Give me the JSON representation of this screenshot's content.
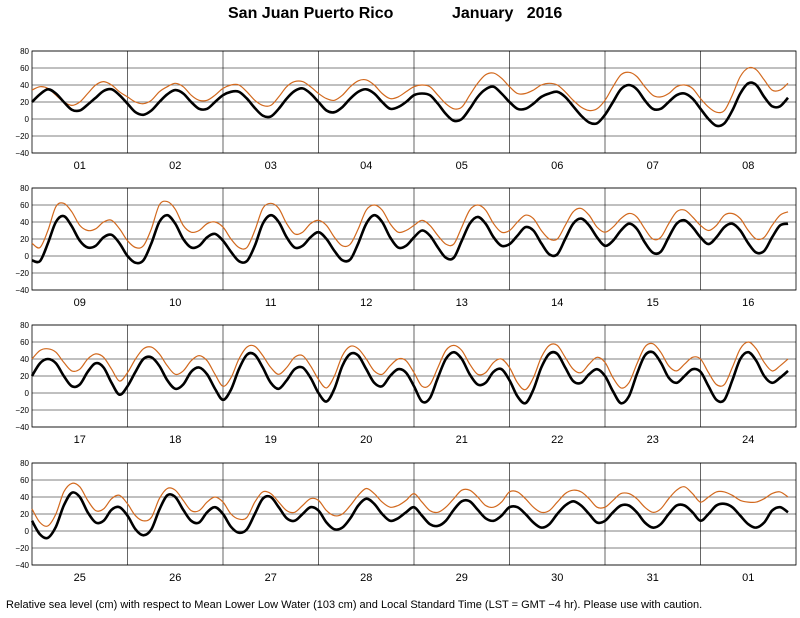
{
  "title": {
    "location": "San Juan Puerto Rico",
    "month": "January",
    "year": "2016"
  },
  "footnote": "Relative sea level (cm) with respect to Mean Lower Low Water (103 cm) and Local Standard Time (LST = GMT −4 hr). Please use with caution.",
  "colors": {
    "predicted": "#000000",
    "observed": "#d2691e",
    "grid": "#000000"
  },
  "chart_data": {
    "type": "line",
    "units": "cm",
    "ylim": [
      -40,
      80
    ],
    "yticks": [
      80,
      60,
      40,
      20,
      0,
      -20,
      -40
    ],
    "grid": true,
    "samples_per_day": 12,
    "series_order": [
      "predicted (black)",
      "observed (orange)"
    ],
    "panels": [
      {
        "day_labels": [
          "01",
          "02",
          "03",
          "04",
          "05",
          "06",
          "07",
          "08"
        ],
        "predicted": [
          [
            20,
            29,
            35,
            30,
            20,
            11,
            10,
            17,
            25,
            33,
            35,
            28
          ],
          [
            18,
            8,
            5,
            10,
            20,
            29,
            34,
            30,
            20,
            12,
            12,
            20
          ],
          [
            28,
            32,
            32,
            24,
            13,
            4,
            3,
            12,
            24,
            33,
            36,
            30
          ],
          [
            20,
            10,
            8,
            14,
            24,
            32,
            35,
            30,
            20,
            12,
            14,
            20
          ],
          [
            28,
            30,
            28,
            18,
            6,
            -2,
            0,
            12,
            26,
            35,
            38,
            30
          ],
          [
            20,
            12,
            12,
            18,
            26,
            30,
            32,
            26,
            15,
            4,
            -4,
            -5
          ],
          [
            5,
            20,
            35,
            40,
            35,
            22,
            12,
            12,
            20,
            28,
            30,
            24
          ],
          [
            12,
            0,
            -8,
            -5,
            10,
            30,
            42,
            40,
            26,
            15,
            15,
            25
          ]
        ],
        "observed": [
          [
            34,
            38,
            36,
            28,
            20,
            16,
            20,
            30,
            40,
            44,
            40,
            32
          ],
          [
            26,
            20,
            18,
            22,
            32,
            38,
            42,
            38,
            28,
            22,
            22,
            28
          ],
          [
            36,
            40,
            40,
            32,
            22,
            16,
            16,
            26,
            38,
            44,
            44,
            38
          ],
          [
            30,
            24,
            22,
            28,
            38,
            45,
            46,
            40,
            30,
            24,
            26,
            32
          ],
          [
            38,
            40,
            38,
            28,
            18,
            12,
            14,
            28,
            42,
            52,
            54,
            48
          ],
          [
            38,
            30,
            30,
            34,
            40,
            42,
            40,
            32,
            22,
            14,
            10,
            12
          ],
          [
            22,
            38,
            52,
            55,
            50,
            38,
            28,
            26,
            30,
            38,
            40,
            36
          ],
          [
            24,
            14,
            8,
            10,
            28,
            50,
            60,
            58,
            46,
            34,
            34,
            42
          ]
        ]
      },
      {
        "day_labels": [
          "09",
          "10",
          "11",
          "12",
          "13",
          "14",
          "15",
          "16"
        ],
        "predicted": [
          [
            -5,
            -6,
            15,
            40,
            47,
            35,
            18,
            10,
            12,
            22,
            25,
            15
          ],
          [
            0,
            -8,
            -5,
            15,
            40,
            48,
            38,
            20,
            10,
            12,
            22,
            26
          ],
          [
            18,
            5,
            -6,
            -6,
            12,
            38,
            48,
            40,
            22,
            10,
            12,
            22
          ],
          [
            28,
            20,
            6,
            -5,
            -4,
            15,
            38,
            48,
            40,
            22,
            10,
            12
          ],
          [
            22,
            30,
            24,
            10,
            -2,
            -2,
            18,
            38,
            46,
            38,
            22,
            12
          ],
          [
            14,
            24,
            34,
            30,
            15,
            2,
            2,
            20,
            38,
            44,
            36,
            22
          ],
          [
            12,
            18,
            30,
            38,
            32,
            16,
            4,
            5,
            22,
            38,
            42,
            34
          ],
          [
            22,
            14,
            22,
            34,
            38,
            30,
            15,
            4,
            6,
            22,
            36,
            38
          ]
        ],
        "observed": [
          [
            15,
            10,
            30,
            58,
            62,
            52,
            36,
            30,
            32,
            40,
            42,
            32
          ],
          [
            18,
            10,
            12,
            32,
            60,
            64,
            55,
            36,
            28,
            30,
            38,
            40
          ],
          [
            34,
            20,
            10,
            10,
            30,
            56,
            62,
            56,
            38,
            26,
            28,
            38
          ],
          [
            42,
            36,
            22,
            12,
            14,
            32,
            54,
            60,
            54,
            38,
            28,
            30
          ],
          [
            36,
            42,
            36,
            24,
            14,
            14,
            34,
            54,
            60,
            54,
            38,
            28
          ],
          [
            30,
            40,
            48,
            44,
            30,
            20,
            20,
            36,
            52,
            56,
            48,
            34
          ],
          [
            28,
            34,
            44,
            50,
            46,
            32,
            20,
            22,
            38,
            52,
            54,
            46
          ],
          [
            36,
            30,
            36,
            48,
            50,
            44,
            30,
            20,
            22,
            36,
            48,
            52
          ]
        ]
      },
      {
        "day_labels": [
          "17",
          "18",
          "19",
          "20",
          "21",
          "22",
          "23",
          "24"
        ],
        "predicted": [
          [
            20,
            35,
            40,
            35,
            20,
            8,
            10,
            25,
            35,
            30,
            12,
            -2
          ],
          [
            8,
            25,
            40,
            42,
            32,
            15,
            5,
            10,
            25,
            30,
            22,
            5
          ],
          [
            -8,
            4,
            28,
            45,
            45,
            30,
            12,
            5,
            15,
            28,
            30,
            18
          ],
          [
            0,
            -10,
            5,
            32,
            46,
            44,
            28,
            12,
            8,
            20,
            28,
            24
          ],
          [
            8,
            -10,
            -6,
            18,
            40,
            48,
            40,
            22,
            10,
            12,
            25,
            28
          ],
          [
            15,
            -4,
            -12,
            4,
            30,
            46,
            46,
            30,
            14,
            12,
            22,
            28
          ],
          [
            20,
            2,
            -12,
            -4,
            22,
            44,
            48,
            36,
            18,
            12,
            20,
            28
          ],
          [
            25,
            8,
            -8,
            -8,
            15,
            40,
            48,
            38,
            20,
            12,
            18,
            26
          ]
        ],
        "observed": [
          [
            40,
            50,
            52,
            48,
            36,
            26,
            28,
            40,
            46,
            42,
            28,
            14
          ],
          [
            24,
            40,
            52,
            54,
            46,
            32,
            22,
            26,
            38,
            44,
            38,
            22
          ],
          [
            8,
            18,
            40,
            54,
            55,
            44,
            30,
            22,
            30,
            42,
            44,
            32
          ],
          [
            16,
            6,
            20,
            44,
            55,
            52,
            40,
            26,
            22,
            32,
            40,
            38
          ],
          [
            24,
            8,
            10,
            30,
            50,
            56,
            50,
            34,
            22,
            24,
            36,
            40
          ],
          [
            30,
            12,
            4,
            18,
            42,
            56,
            56,
            42,
            28,
            24,
            34,
            42
          ],
          [
            36,
            18,
            6,
            12,
            34,
            54,
            58,
            48,
            32,
            26,
            34,
            42
          ],
          [
            40,
            24,
            10,
            10,
            30,
            52,
            60,
            52,
            36,
            26,
            32,
            40
          ]
        ]
      },
      {
        "day_labels": [
          "25",
          "26",
          "27",
          "28",
          "29",
          "30",
          "31",
          "01"
        ],
        "predicted": [
          [
            12,
            -4,
            -8,
            5,
            30,
            45,
            40,
            22,
            10,
            12,
            25,
            28
          ],
          [
            18,
            2,
            -5,
            2,
            25,
            42,
            40,
            25,
            12,
            10,
            22,
            28
          ],
          [
            20,
            5,
            -2,
            2,
            20,
            38,
            40,
            28,
            15,
            12,
            20,
            28
          ],
          [
            24,
            10,
            2,
            4,
            15,
            30,
            38,
            32,
            20,
            12,
            15,
            22
          ],
          [
            28,
            18,
            8,
            6,
            12,
            25,
            35,
            35,
            25,
            15,
            12,
            18
          ],
          [
            28,
            28,
            20,
            10,
            4,
            8,
            20,
            30,
            35,
            30,
            20,
            10
          ],
          [
            12,
            22,
            30,
            30,
            22,
            10,
            4,
            8,
            20,
            30,
            30,
            22
          ],
          [
            12,
            20,
            30,
            32,
            28,
            18,
            8,
            4,
            10,
            24,
            28,
            22
          ]
        ],
        "observed": [
          [
            26,
            10,
            6,
            20,
            46,
            56,
            52,
            36,
            24,
            26,
            38,
            42
          ],
          [
            32,
            18,
            12,
            16,
            38,
            50,
            48,
            36,
            24,
            24,
            34,
            40
          ],
          [
            34,
            20,
            14,
            16,
            34,
            46,
            44,
            34,
            24,
            22,
            30,
            38
          ],
          [
            36,
            24,
            18,
            20,
            30,
            42,
            50,
            44,
            34,
            28,
            30,
            36
          ],
          [
            44,
            34,
            24,
            22,
            28,
            38,
            48,
            48,
            40,
            30,
            28,
            34
          ],
          [
            46,
            46,
            38,
            28,
            22,
            24,
            34,
            44,
            48,
            46,
            38,
            28
          ],
          [
            28,
            36,
            44,
            44,
            38,
            28,
            22,
            26,
            38,
            48,
            52,
            44
          ],
          [
            34,
            40,
            46,
            46,
            42,
            36,
            34,
            34,
            38,
            44,
            46,
            40
          ]
        ]
      }
    ]
  }
}
